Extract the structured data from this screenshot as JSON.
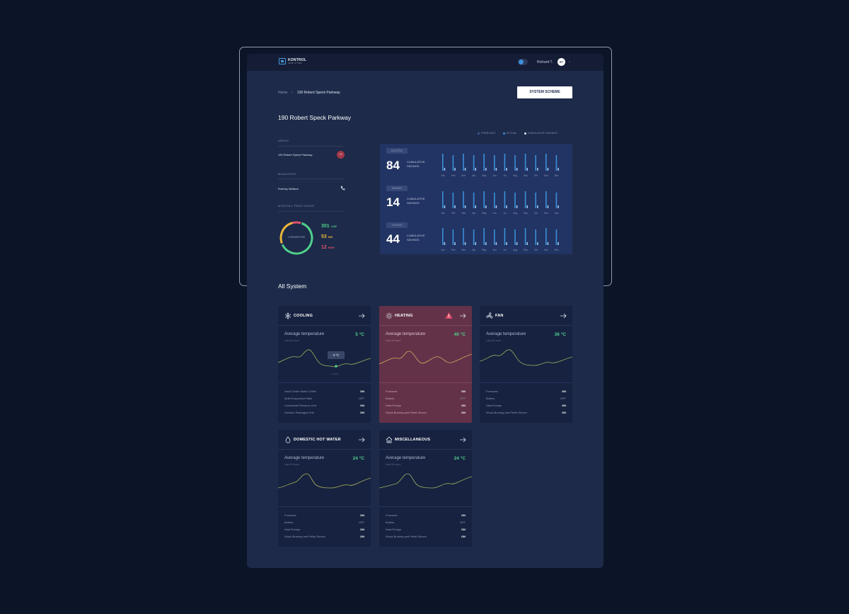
{
  "header": {
    "logo_text": "KONTROL",
    "logo_sub": "SMART SYSTEM",
    "user_name": "Richard T.",
    "avatar_initials": "RT"
  },
  "breadcrumb": {
    "home": "Home",
    "separator": "›",
    "current": "190 Robert Speck Parkway"
  },
  "system_scheme_label": "SYSTEM SCHEME",
  "page_title": "190 Robert Speck Parkway",
  "info": {
    "areas_label": "AREAS",
    "area_value": "190 Robert Speck Parkway",
    "area_badge": "15",
    "managers_label": "MANAGERS",
    "manager_value": "Rodney Wallace",
    "peak_label": "MONTHLY PEAK USAGE",
    "donut_label": "3 PARAMETERS",
    "usage": [
      {
        "value": "301",
        "unit": "LOW",
        "color": "#4fd08a"
      },
      {
        "value": "53",
        "unit": "MID",
        "color": "#e8b53a"
      },
      {
        "value": "12",
        "unit": "HIGH",
        "color": "#e0506b"
      }
    ]
  },
  "legend": {
    "forecast": "FORECAST",
    "actual": "ACTUAL",
    "cumulative": "CUMULATIVE SAVINGS"
  },
  "savings": [
    {
      "tag": "ELECTRIC",
      "value": "84",
      "label1": "CUMULATIVE",
      "label2": "SAVINGS",
      "months": [
        "Jan",
        "Feb",
        "Mar",
        "Apr",
        "May",
        "Jun",
        "Jul",
        "Aug",
        "Sep",
        "Oct",
        "Nov",
        "Dec"
      ]
    },
    {
      "tag": "HEATING",
      "value": "14",
      "label1": "CUMULATIVE",
      "label2": "SAVINGS",
      "months": [
        "Jan",
        "Feb",
        "Mar",
        "Apr",
        "May",
        "Jun",
        "Jul",
        "Aug",
        "Sep",
        "Oct",
        "Nov",
        "Dec"
      ]
    },
    {
      "tag": "COOLING",
      "value": "44",
      "label1": "CUMULATIVE",
      "label2": "SAVINGS",
      "months": [
        "Jan",
        "Feb",
        "Mar",
        "Apr",
        "May",
        "Jun",
        "Jul",
        "Aug",
        "Sep",
        "Oct",
        "Nov",
        "Dec"
      ]
    }
  ],
  "all_system_title": "All System",
  "cards": [
    {
      "title": "COOLING",
      "icon": "snowflake-icon",
      "avg_label": "Average temperature",
      "avg_sub": "Last 24 hours",
      "value": "5 °C",
      "alert": false,
      "tooltip": "3 °C",
      "tooltip_time": "12 PM",
      "rows": [
        {
          "name": "Vault Chiller Water Chiller",
          "status": "ON"
        },
        {
          "name": "Multi Evaporator Rails",
          "status": "OFF"
        },
        {
          "name": "Condensed Reserve Unit",
          "status": "ON"
        },
        {
          "name": "Outdoor Packaged Unit",
          "status": "ON"
        }
      ]
    },
    {
      "title": "HEATING",
      "icon": "sun-icon",
      "avg_label": "Average temperature",
      "avg_sub": "Last 24 hours",
      "value": "40 °C",
      "alert": true,
      "rows": [
        {
          "name": "Furnaces",
          "status": "ON"
        },
        {
          "name": "Boilers",
          "status": "OFF"
        },
        {
          "name": "Heat Pumps",
          "status": "ON"
        },
        {
          "name": "Wood-Burning and Pellet Stoves",
          "status": "ON"
        }
      ]
    },
    {
      "title": "FAN",
      "icon": "fan-icon",
      "avg_label": "Average temperature",
      "avg_sub": "Last 24 hours",
      "value": "36 °C",
      "alert": false,
      "rows": [
        {
          "name": "Furnaces",
          "status": "ON"
        },
        {
          "name": "Boilers",
          "status": "OFF"
        },
        {
          "name": "Heat Pumps",
          "status": "ON"
        },
        {
          "name": "Wood-Burning and Pellet Stoves",
          "status": "ON"
        }
      ]
    },
    {
      "title": "DOMESTIC HOT WATER",
      "icon": "drop-icon",
      "avg_label": "Average temperature",
      "avg_sub": "Last 24 hours",
      "value": "24 °C",
      "alert": false,
      "rows": [
        {
          "name": "Furnaces",
          "status": "ON"
        },
        {
          "name": "Boilers",
          "status": "OFF"
        },
        {
          "name": "Heat Pumps",
          "status": "ON"
        },
        {
          "name": "Wood-Burning and Pellet Stoves",
          "status": "ON"
        }
      ]
    },
    {
      "title": "MISCELLANEOUS",
      "icon": "house-icon",
      "avg_label": "Average temperature",
      "avg_sub": "Last 24 hours",
      "value": "24 °C",
      "alert": false,
      "rows": [
        {
          "name": "Furnaces",
          "status": "ON"
        },
        {
          "name": "Boilers",
          "status": "OFF"
        },
        {
          "name": "Heat Pumps",
          "status": "ON"
        },
        {
          "name": "Wood-Burning and Pellet Stoves",
          "status": "ON"
        }
      ]
    }
  ],
  "colors": {
    "accent": "#3b8fd9",
    "green": "#4fd08a",
    "yellow": "#e8b53a",
    "red": "#e0506b"
  }
}
